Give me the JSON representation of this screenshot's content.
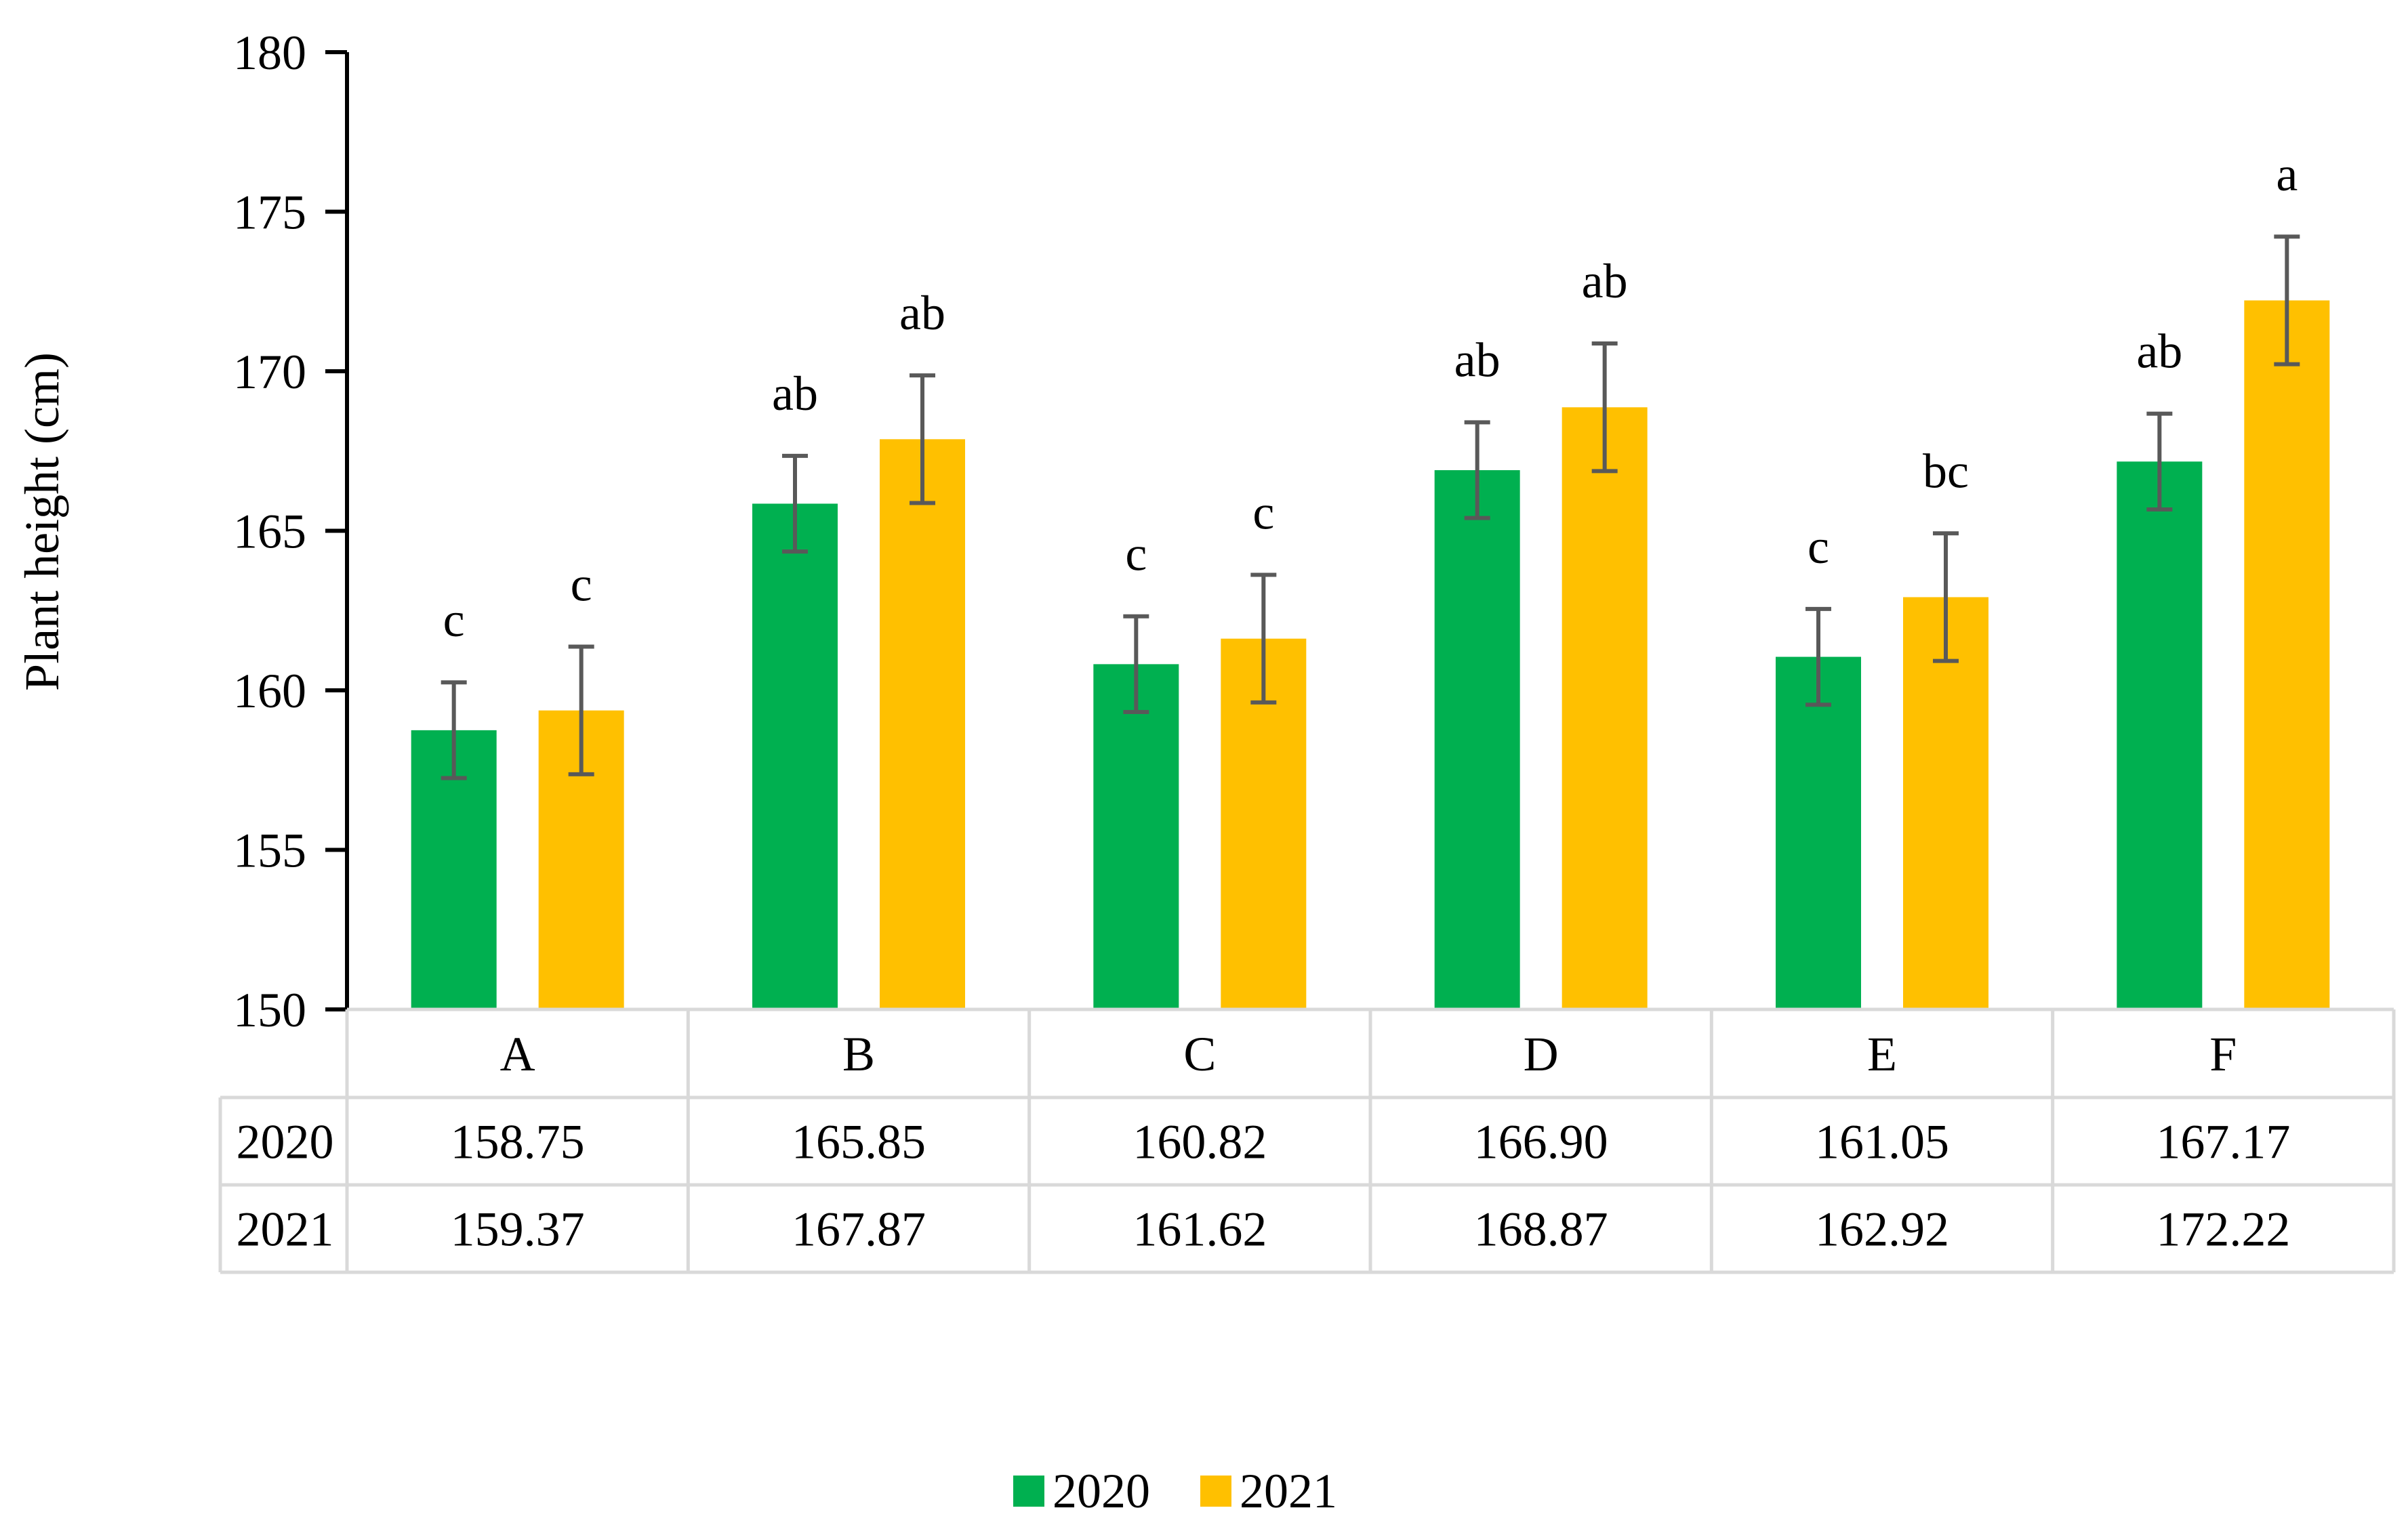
{
  "chart_data": {
    "type": "bar",
    "title": "",
    "xlabel": "",
    "ylabel": "Plant height (cm)",
    "ylim": [
      150,
      180
    ],
    "yticks": [
      150,
      155,
      160,
      165,
      170,
      175,
      180
    ],
    "grid": false,
    "legend_position": "bottom-center",
    "categories": [
      "A",
      "B",
      "C",
      "D",
      "E",
      "F"
    ],
    "series": [
      {
        "name": "2020",
        "color": "#00B050",
        "values": [
          158.75,
          165.85,
          160.82,
          166.9,
          161.05,
          167.17
        ],
        "display_values": [
          "158.75",
          "165.85",
          "160.82",
          "166.90",
          "161.05",
          "167.17"
        ],
        "error": [
          1.5,
          1.5,
          1.5,
          1.5,
          1.5,
          1.5
        ],
        "letters": [
          "c",
          "ab",
          "c",
          "ab",
          "c",
          "ab"
        ]
      },
      {
        "name": "2021",
        "color": "#FFC000",
        "values": [
          159.37,
          167.87,
          161.62,
          168.87,
          162.92,
          172.22
        ],
        "display_values": [
          "159.37",
          "167.87",
          "161.62",
          "168.87",
          "162.92",
          "172.22"
        ],
        "error": [
          2.0,
          2.0,
          2.0,
          2.0,
          2.0,
          2.0
        ],
        "letters": [
          "c",
          "ab",
          "c",
          "ab",
          "bc",
          "a"
        ]
      }
    ],
    "table": {
      "row_labels": [
        "2020",
        "2021"
      ]
    }
  }
}
